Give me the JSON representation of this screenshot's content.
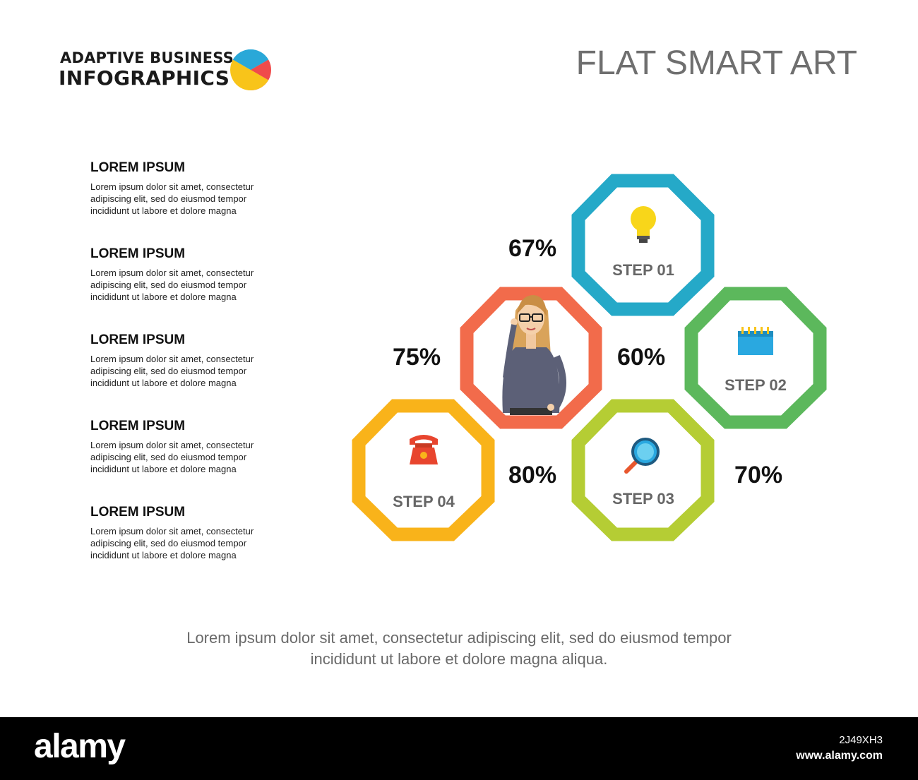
{
  "brand": {
    "line1": "ADAPTIVE BUSINESS",
    "line2": "INFOGRAPHICS",
    "logo_colors": [
      "#2aa8d8",
      "#f04b4b",
      "#f8c41a"
    ]
  },
  "title": "FLAT SMART ART",
  "items": [
    {
      "title": "LOREM IPSUM",
      "body": "Lorem ipsum dolor sit amet, consectetur adipiscing elit, sed do eiusmod tempor incididunt ut labore et dolore magna"
    },
    {
      "title": "LOREM IPSUM",
      "body": "Lorem ipsum dolor sit amet, consectetur adipiscing elit, sed do eiusmod tempor incididunt ut labore et dolore magna"
    },
    {
      "title": "LOREM IPSUM",
      "body": "Lorem ipsum dolor sit amet, consectetur adipiscing elit, sed do eiusmod tempor incididunt ut labore et dolore magna"
    },
    {
      "title": "LOREM IPSUM",
      "body": "Lorem ipsum dolor sit amet, consectetur adipiscing elit, sed do eiusmod tempor incididunt ut labore et dolore magna"
    },
    {
      "title": "LOREM IPSUM",
      "body": "Lorem ipsum dolor sit amet, consectetur adipiscing elit, sed do eiusmod tempor incididunt ut labore et dolore magna"
    }
  ],
  "diagram": {
    "center_color": "#f26b4b",
    "steps": [
      {
        "label": "STEP 01",
        "color": "#25a9c8",
        "icon": "lightbulb-icon"
      },
      {
        "label": "STEP 02",
        "color": "#5cb85c",
        "icon": "calendar-icon"
      },
      {
        "label": "STEP 03",
        "color": "#b5cd34",
        "icon": "magnifier-icon"
      },
      {
        "label": "STEP 04",
        "color": "#f9b31a",
        "icon": "telephone-icon"
      }
    ],
    "percentages": [
      "67%",
      "60%",
      "70%",
      "80%",
      "75%"
    ]
  },
  "footer": {
    "line1": "Lorem ipsum dolor sit amet, consectetur adipiscing elit, sed do eiusmod tempor",
    "line2": "incididunt ut labore et dolore magna aliqua."
  },
  "stock": {
    "logo": "alamy",
    "image_id": "2J49XH3",
    "url": "www.alamy.com"
  }
}
